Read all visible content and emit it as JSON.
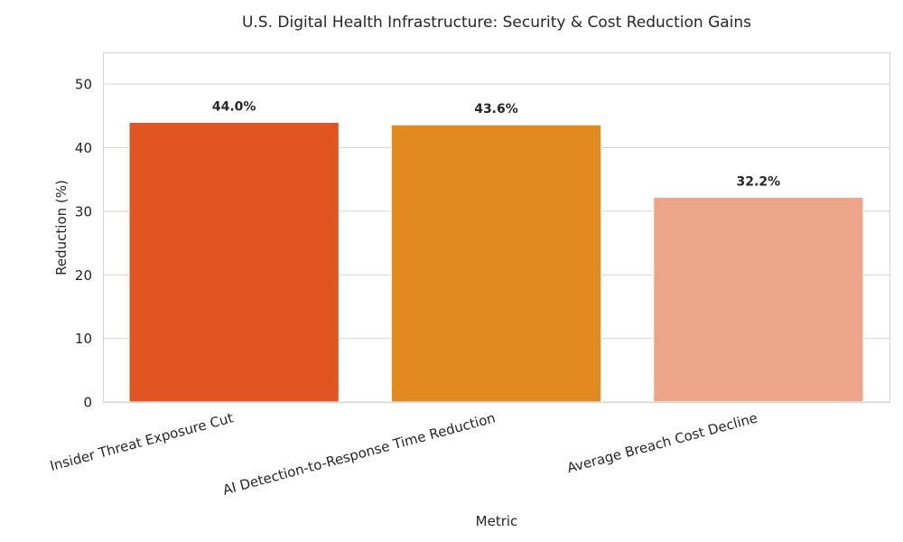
{
  "chart_data": {
    "type": "bar",
    "title": "U.S. Digital Health Infrastructure: Security & Cost Reduction Gains",
    "xlabel": "Metric",
    "ylabel": "Reduction (%)",
    "categories": [
      "Insider Threat Exposure Cut",
      "AI Detection-to-Response Time Reduction",
      "Average Breach Cost Decline"
    ],
    "values": [
      44.0,
      43.6,
      32.2
    ],
    "value_labels": [
      "44.0%",
      "43.6%",
      "32.2%"
    ],
    "colors": [
      "#e05521",
      "#e08a20",
      "#eda68a"
    ],
    "ylim": [
      0,
      55
    ],
    "yticks": [
      0,
      10,
      20,
      30,
      40,
      50
    ],
    "ytick_labels": [
      "0",
      "10",
      "20",
      "30",
      "40",
      "50"
    ],
    "grid": true,
    "legend": "none"
  }
}
